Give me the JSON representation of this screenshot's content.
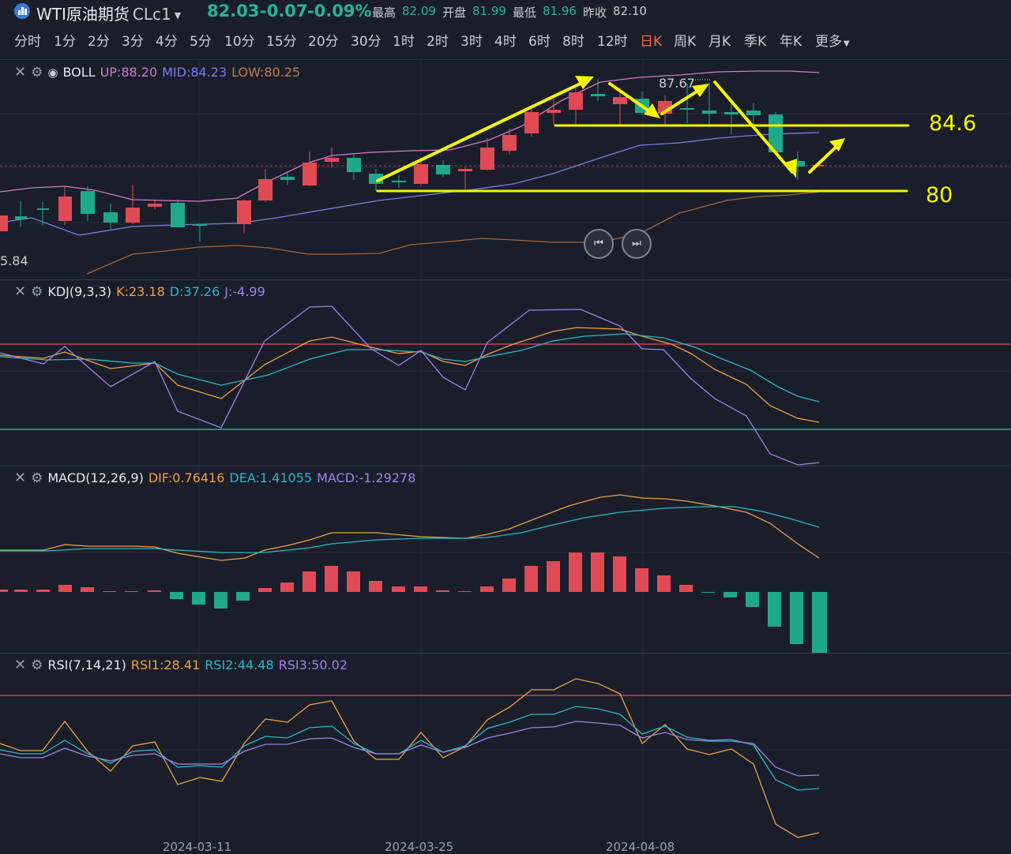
{
  "header": {
    "symbol_name": "WTI原油期货",
    "symbol_code": "CLc1",
    "last": "82.03",
    "change": "-0.07",
    "change_pct": "-0.09%",
    "high_label": "最高",
    "high": "82.09",
    "open_label": "开盘",
    "open": "81.99",
    "low_label": "最低",
    "low": "81.96",
    "prev_label": "昨收",
    "prev": "82.10"
  },
  "timeframes": [
    "分时",
    "1分",
    "2分",
    "3分",
    "4分",
    "5分",
    "10分",
    "15分",
    "20分",
    "30分",
    "1时",
    "2时",
    "3时",
    "4时",
    "6时",
    "8时",
    "12时",
    "日K",
    "周K",
    "月K",
    "季K",
    "年K",
    "更多"
  ],
  "active_timeframe": "日K",
  "panes": {
    "boll": {
      "name": "BOLL",
      "up": "UP:88.20",
      "mid": "MID:84.23",
      "low": "LOW:80.25"
    },
    "kdj": {
      "name": "KDJ(9,3,3)",
      "k": "K:23.18",
      "d": "D:37.26",
      "j": "J:-4.99"
    },
    "macd": {
      "name": "MACD(12,26,9)",
      "dif": "DIF:0.76416",
      "dea": "DEA:1.41055",
      "macd": "MACD:-1.29278"
    },
    "rsi": {
      "name": "RSI(7,14,21)",
      "r1": "RSI1:28.41",
      "r2": "RSI2:44.48",
      "r3": "RSI3:50.02"
    }
  },
  "price_labels": {
    "high_mark": "87.67",
    "low_mark": "5.84"
  },
  "annotations": {
    "level_high": "84.6",
    "level_low": "80"
  },
  "dates": [
    "2024-03-11",
    "2024-03-25",
    "2024-04-08"
  ],
  "colors": {
    "up": "#e04a55",
    "down": "#1fa88a",
    "boll_up": "#d878c8",
    "boll_mid": "#7a7ee8",
    "boll_low": "#a8643a",
    "accent": "#f26a3a",
    "annotation": "#f5f500"
  },
  "icons": [
    "close-icon",
    "settings-icon",
    "eye-icon",
    "prev-icon",
    "next-icon"
  ]
}
